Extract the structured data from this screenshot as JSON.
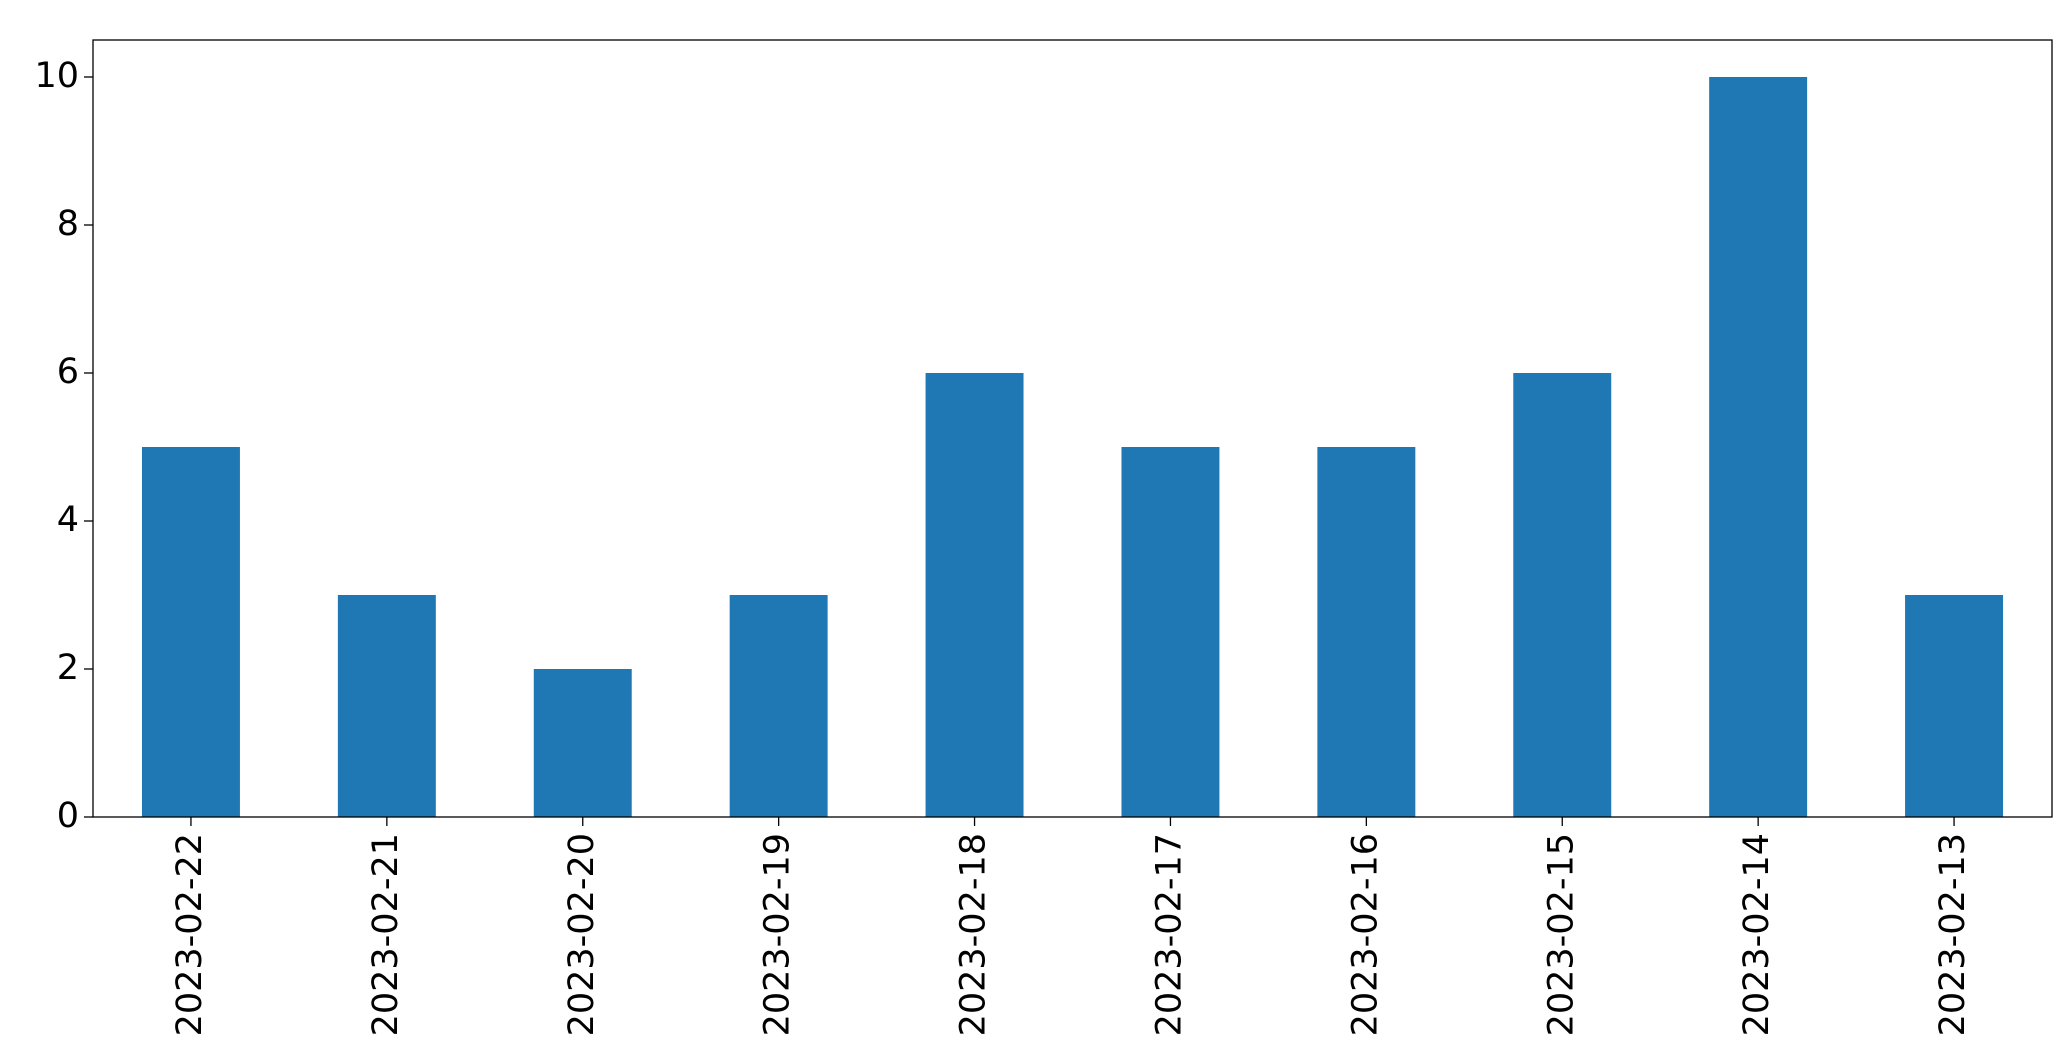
{
  "chart_data": {
    "type": "bar",
    "categories": [
      "2023-02-22",
      "2023-02-21",
      "2023-02-20",
      "2023-02-19",
      "2023-02-18",
      "2023-02-17",
      "2023-02-16",
      "2023-02-15",
      "2023-02-14",
      "2023-02-13"
    ],
    "values": [
      5,
      3,
      2,
      3,
      6,
      5,
      5,
      6,
      10,
      3
    ],
    "color": "#1f77b4",
    "ylim": [
      0,
      10.5
    ],
    "yticks": [
      0,
      2,
      4,
      6,
      8,
      10
    ],
    "grid": false
  }
}
